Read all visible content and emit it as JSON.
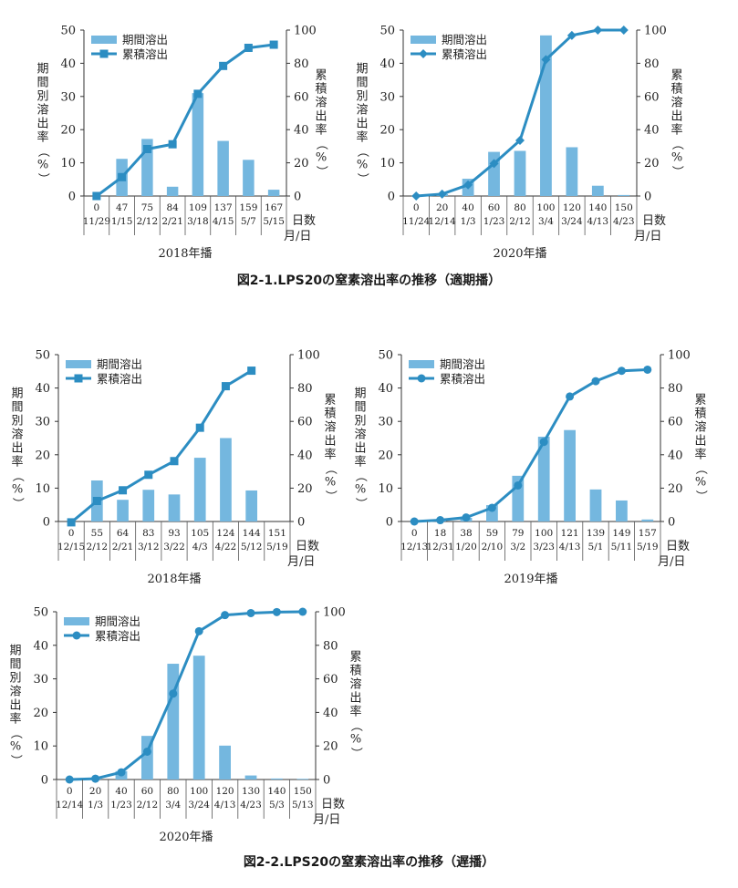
{
  "figure_titles": {
    "fig1": "図2-1.LPS20の窒素溶出率の推移（適期播）",
    "fig2": "図2-2.LPS20の窒素溶出率の推移（遅播）"
  },
  "colors": {
    "bar": "#74b7df",
    "line": "#2c8dc2"
  },
  "chart_data": [
    {
      "type": "bar",
      "title": "2018年播",
      "ylabel": "期間別溶出率（%）",
      "y2label": "累積溶出率（%）",
      "xlabel_days": "日数",
      "xlabel_date": "月/日",
      "legend": [
        "期間溶出",
        "累積溶出"
      ],
      "legend_position": "top-left",
      "marker": "square",
      "ylim": [
        0,
        50
      ],
      "y2lim": [
        0,
        100
      ],
      "categories_days": [
        "0",
        "47",
        "75",
        "84",
        "109",
        "137",
        "159",
        "167"
      ],
      "categories_dates": [
        "11/29",
        "1/15",
        "2/12",
        "2/21",
        "3/18",
        "4/15",
        "5/7",
        "5/15"
      ],
      "series": [
        {
          "name": "期間溶出",
          "type": "bar",
          "values": [
            0,
            11.2,
            17.2,
            2.8,
            31.0,
            16.6,
            10.9,
            1.9
          ]
        },
        {
          "name": "累積溶出",
          "type": "line",
          "axis": "right",
          "values": [
            0,
            11.4,
            28.3,
            31.2,
            61.6,
            78.4,
            89.3,
            91.2
          ]
        }
      ]
    },
    {
      "type": "bar",
      "title": "2020年播",
      "ylabel": "期間別溶出率（%）",
      "y2label": "累積溶出率（%）",
      "xlabel_days": "日数",
      "xlabel_date": "月/日",
      "legend": [
        "期間溶出",
        "累積溶出"
      ],
      "legend_position": "top-left",
      "marker": "diamond",
      "ylim": [
        0,
        50
      ],
      "y2lim": [
        0,
        100
      ],
      "categories_days": [
        "0",
        "20",
        "40",
        "60",
        "80",
        "100",
        "120",
        "140",
        "150"
      ],
      "categories_dates": [
        "11/24",
        "12/14",
        "1/3",
        "1/23",
        "2/12",
        "3/4",
        "3/24",
        "4/13",
        "4/23"
      ],
      "series": [
        {
          "name": "期間溶出",
          "type": "bar",
          "values": [
            0,
            0.6,
            5.2,
            13.3,
            13.6,
            48.4,
            14.7,
            3.1,
            0.3
          ]
        },
        {
          "name": "累積溶出",
          "type": "line",
          "axis": "right",
          "values": [
            0,
            1.2,
            6.7,
            19.6,
            33.5,
            82.2,
            96.8,
            100,
            100
          ]
        }
      ]
    },
    {
      "type": "bar",
      "title": "2018年播",
      "ylabel": "期間別溶出率（%）",
      "y2label": "累積溶出率（%）",
      "xlabel_days": "日数",
      "xlabel_date": "月/日",
      "legend": [
        "期間溶出",
        "累積溶出"
      ],
      "legend_position": "top-left",
      "marker": "square",
      "ylim": [
        0,
        50
      ],
      "y2lim": [
        0,
        100
      ],
      "categories_days": [
        "0",
        "55",
        "64",
        "83",
        "93",
        "105",
        "124",
        "144",
        "151"
      ],
      "categories_dates": [
        "12/15",
        "2/12",
        "2/21",
        "3/12",
        "3/22",
        "4/3",
        "4/22",
        "5/12",
        "5/19"
      ],
      "series": [
        {
          "name": "期間溶出",
          "type": "bar",
          "values": [
            0,
            12.3,
            6.5,
            9.5,
            8.1,
            19.1,
            25.0,
            9.3,
            0
          ]
        },
        {
          "name": "累積溶出",
          "type": "line",
          "axis": "right",
          "values": [
            -0.5,
            12.3,
            18.7,
            28.0,
            36.2,
            56.2,
            81.1,
            90.4,
            null
          ]
        }
      ]
    },
    {
      "type": "bar",
      "title": "2019年播",
      "ylabel": "期間別溶出率（%）",
      "y2label": "累積溶出率（%）",
      "xlabel_days": "日数",
      "xlabel_date": "月/日",
      "legend": [
        "期間溶出",
        "累積溶出"
      ],
      "legend_position": "top-left",
      "marker": "circle",
      "ylim": [
        0,
        50
      ],
      "y2lim": [
        0,
        100
      ],
      "categories_days": [
        "0",
        "18",
        "38",
        "59",
        "79",
        "100",
        "121",
        "139",
        "149",
        "157"
      ],
      "categories_dates": [
        "12/13",
        "12/31",
        "1/20",
        "2/10",
        "3/2",
        "3/23",
        "4/13",
        "5/1",
        "5/11",
        "5/19"
      ],
      "series": [
        {
          "name": "期間溶出",
          "type": "bar",
          "values": [
            0,
            0.4,
            1.1,
            4.9,
            13.7,
            25.4,
            27.4,
            9.6,
            6.3,
            0.6
          ]
        },
        {
          "name": "累積溶出",
          "type": "line",
          "axis": "right",
          "values": [
            0,
            0.8,
            2.4,
            8.2,
            21.6,
            47.7,
            74.9,
            84.1,
            90.3,
            91.0
          ]
        }
      ]
    },
    {
      "type": "bar",
      "title": "2020年播",
      "ylabel": "期間別溶出率（%）",
      "y2label": "累積溶出率（%）",
      "xlabel_days": "日数",
      "xlabel_date": "月/日",
      "legend": [
        "期間溶出",
        "累積溶出"
      ],
      "legend_position": "top-left",
      "marker": "circle",
      "ylim": [
        0,
        50
      ],
      "y2lim": [
        0,
        100
      ],
      "categories_days": [
        "0",
        "20",
        "40",
        "60",
        "80",
        "100",
        "120",
        "130",
        "140",
        "150"
      ],
      "categories_dates": [
        "12/14",
        "1/3",
        "1/23",
        "2/12",
        "3/4",
        "3/24",
        "4/13",
        "4/23",
        "5/3",
        "5/13"
      ],
      "series": [
        {
          "name": "期間溶出",
          "type": "bar",
          "values": [
            0,
            0.3,
            2.5,
            13.0,
            34.5,
            36.9,
            10.1,
            1.2,
            0.3,
            0.2
          ]
        },
        {
          "name": "累積溶出",
          "type": "line",
          "axis": "right",
          "values": [
            0,
            0.5,
            4.3,
            16.6,
            51.2,
            88.4,
            98.0,
            99.2,
            99.8,
            100
          ]
        }
      ]
    }
  ]
}
